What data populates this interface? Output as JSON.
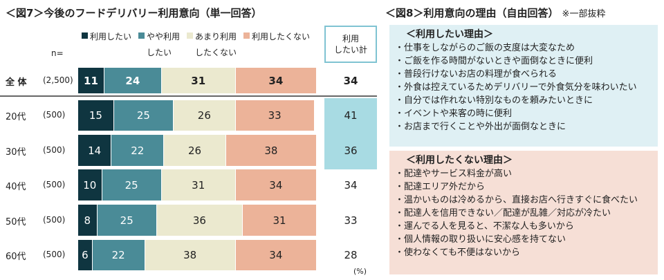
{
  "fig7": {
    "title": "＜図7＞今後のフードデリバリー利用意向（単一回答）",
    "n_label": "n=",
    "sum_header": [
      "利用",
      "したい計"
    ],
    "unit": "(%)"
  },
  "chart_data": {
    "type": "bar",
    "orientation": "horizontal-stacked-100",
    "title": "＜図7＞今後のフードデリバリー利用意向（単一回答）",
    "categories": [
      "全 体",
      "20代",
      "30代",
      "40代",
      "50代",
      "60代"
    ],
    "n": [
      "(2,500)",
      "(500)",
      "(500)",
      "(500)",
      "(500)",
      "(500)"
    ],
    "series": [
      {
        "name": "利用したい",
        "sub": "",
        "color": "#0f3540",
        "text_color": "#ffffff",
        "values": [
          11,
          15,
          14,
          10,
          8,
          6
        ]
      },
      {
        "name": "やや利用",
        "sub": "したい",
        "color": "#4a8b97",
        "text_color": "#ffffff",
        "values": [
          24,
          25,
          22,
          25,
          25,
          22
        ]
      },
      {
        "name": "あまり利用",
        "sub": "したくない",
        "color": "#ebe9cf",
        "text_color": "#222222",
        "values": [
          31,
          26,
          26,
          31,
          36,
          38
        ]
      },
      {
        "name": "利用したくない",
        "sub": "",
        "color": "#ecb399",
        "text_color": "#222222",
        "values": [
          34,
          33,
          38,
          34,
          31,
          34
        ]
      }
    ],
    "sum_values": [
      34,
      41,
      36,
      34,
      33,
      28
    ],
    "sum_highlight": [
      false,
      true,
      true,
      false,
      false,
      false
    ],
    "highlight_color": "#a8dbe3",
    "xlim": [
      0,
      100
    ]
  },
  "fig8": {
    "title": "＜図8＞利用意向の理由（自由回答）",
    "note": "※一部抜粋",
    "want": {
      "heading": "＜利用したい理由＞",
      "items": [
        "・仕事をしながらのご飯の支度は大変なため",
        "・ご飯を作る時間がないときや面倒なときに便利",
        "・普段行けないお店の料理が食べられる",
        "・外食は控えているためデリバリーで外食気分を味わいたい",
        "・自分では作れない特別なものを頼みたいときに",
        "・イベントや来客の時に便利",
        "・お店まで行くことや外出が面倒なときに"
      ]
    },
    "not_want": {
      "heading": "＜利用したくない理由＞",
      "items": [
        "・配達やサービス料金が高い",
        "・配達エリア外だから",
        "・温かいものは冷めるから、直接お店へ行きすぐに食べたい",
        "・配達人を信用できない／配達が乱雑／対応が冷たい",
        "・運んでる人を見ると、不潔な人も多いから",
        "・個人情報の取り扱いに安心感を持てない",
        "・使わなくても不便はないから"
      ]
    }
  }
}
